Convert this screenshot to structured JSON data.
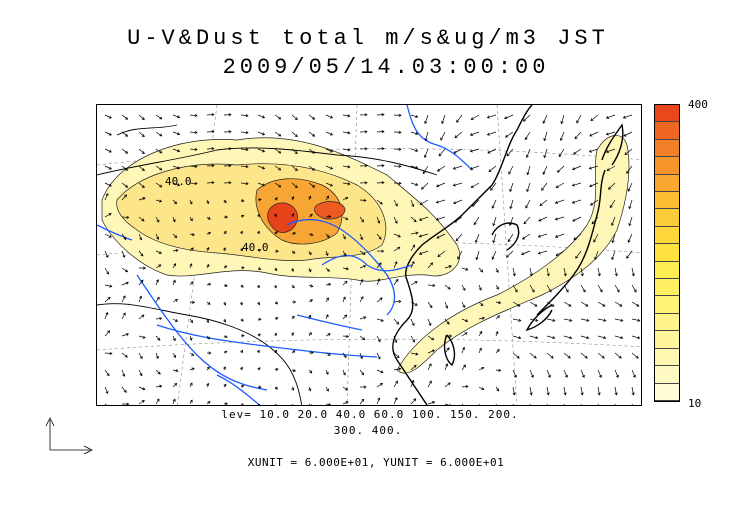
{
  "title": "U-V&Dust total m/s&ug/m3 JST",
  "datetime": "2009/05/14.03:00:00",
  "levels_line1": "lev= 10.0 20.0 40.0 60.0 100. 150. 200.",
  "levels_line2": "300. 400.",
  "unit_text": "XUNIT = 6.000E+01, YUNIT = 6.000E+01",
  "colorbar": {
    "max_label": "400",
    "min_label": "10",
    "colors": [
      "#e8481c",
      "#ee6622",
      "#f07f27",
      "#f5952b",
      "#f8a830",
      "#fbbb33",
      "#fccc38",
      "#fdd73c",
      "#fee340",
      "#ffee52",
      "#ffef63",
      "#fff276",
      "#fff489",
      "#fff69c",
      "#fff8b0",
      "#fffac3",
      "#fffcd6"
    ]
  },
  "contour_labels": [
    "40.0",
    "40.0"
  ],
  "colors": {
    "dust_light": "#fff7b8",
    "dust_mid": "#fde58a",
    "dust_orange": "#f7a534",
    "dust_red": "#e8441b",
    "river": "#1f5cff",
    "coast": "#000000"
  }
}
